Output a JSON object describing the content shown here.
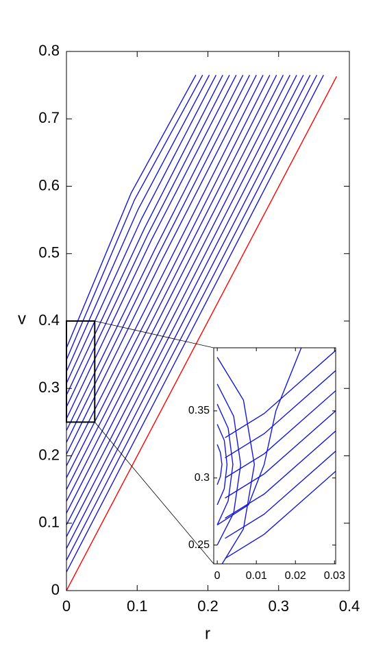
{
  "chart_data": [
    {
      "type": "line",
      "xlabel": "r",
      "ylabel": "v",
      "xlim": [
        0,
        0.4
      ],
      "ylim": [
        0,
        0.8
      ],
      "xticks": [
        0,
        0.1,
        0.2,
        0.3,
        0.4
      ],
      "yticks": [
        0,
        0.1,
        0.2,
        0.3,
        0.4,
        0.5,
        0.6,
        0.7,
        0.8
      ],
      "zoom_box": {
        "xlim": [
          0,
          0.04
        ],
        "ylim": [
          0.25,
          0.4
        ]
      },
      "series": [
        {
          "color": "#1515d6",
          "x": [
            0,
            0.0915,
            0.183
          ],
          "values": [
            0.36,
            0.59,
            0.765
          ]
        },
        {
          "color": "#1515d6",
          "x": [
            0,
            0.0963,
            0.1925
          ],
          "values": [
            0.3425,
            0.58,
            0.765
          ]
        },
        {
          "color": "#1515d6",
          "x": [
            0,
            0.101,
            0.202
          ],
          "values": [
            0.325,
            0.565,
            0.765
          ]
        },
        {
          "color": "#1515d6",
          "x": [
            0,
            0.1058,
            0.2115
          ],
          "values": [
            0.3075,
            0.551,
            0.765
          ]
        },
        {
          "color": "#1515d6",
          "x": [
            0,
            0.1105,
            0.221
          ],
          "values": [
            0.29,
            0.538,
            0.765
          ]
        },
        {
          "color": "#1515d6",
          "x": [
            0,
            0.1153,
            0.2305
          ],
          "values": [
            0.2725,
            0.529,
            0.765
          ]
        },
        {
          "color": "#1515d6",
          "x": [
            0,
            0.12,
            0.24
          ],
          "values": [
            0.255,
            0.52,
            0.765
          ]
        },
        {
          "color": "#1515d6",
          "x": [
            0,
            0.1248,
            0.2495
          ],
          "values": [
            0.2375,
            0.506,
            0.765
          ]
        },
        {
          "color": "#1515d6",
          "x": [
            0,
            0.1295,
            0.259
          ],
          "values": [
            0.22,
            0.498,
            0.765
          ]
        },
        {
          "color": "#1515d6",
          "x": [
            0,
            0.1343,
            0.2685
          ],
          "values": [
            0.2025,
            0.489,
            0.765
          ]
        },
        {
          "color": "#1515d6",
          "x": [
            0,
            0.139,
            0.278
          ],
          "values": [
            0.185,
            0.475,
            0.765
          ]
        },
        {
          "color": "#1515d6",
          "x": [
            0,
            0.1438,
            0.2875
          ],
          "values": [
            0.1675,
            0.466,
            0.765
          ]
        },
        {
          "color": "#1515d6",
          "x": [
            0,
            0.1485,
            0.297
          ],
          "values": [
            0.15,
            0.4575,
            0.765
          ]
        },
        {
          "color": "#1515d6",
          "x": [
            0,
            0.1533,
            0.3065
          ],
          "values": [
            0.1325,
            0.449,
            0.765
          ]
        },
        {
          "color": "#1515d6",
          "x": [
            0,
            0.158,
            0.316
          ],
          "values": [
            0.115,
            0.44,
            0.765
          ]
        },
        {
          "color": "#1515d6",
          "x": [
            0,
            0.1628,
            0.3255
          ],
          "values": [
            0.0975,
            0.431,
            0.765
          ]
        },
        {
          "color": "#1515d6",
          "x": [
            0,
            0.1675,
            0.335
          ],
          "values": [
            0.08,
            0.4225,
            0.765
          ]
        },
        {
          "color": "#1515d6",
          "x": [
            0,
            0.1723,
            0.3445
          ],
          "values": [
            0.0625,
            0.414,
            0.765
          ]
        },
        {
          "color": "#1515d6",
          "x": [
            0,
            0.177,
            0.354
          ],
          "values": [
            0.045,
            0.405,
            0.765
          ]
        },
        {
          "color": "#1515d6",
          "x": [
            0,
            0.1818,
            0.3635
          ],
          "values": [
            0.0275,
            0.396,
            0.765
          ]
        },
        {
          "color": "#ff0000",
          "x": [
            0,
            0.382
          ],
          "values": [
            0,
            0.763
          ]
        }
      ]
    },
    {
      "type": "line",
      "xlim": [
        -0.0009,
        0.0303
      ],
      "ylim": [
        0.236,
        0.397
      ],
      "xticks": [
        0,
        0.01,
        0.02,
        0.03
      ],
      "yticks": [
        0.25,
        0.3,
        0.35
      ],
      "series": [
        {
          "color": "#1515d6",
          "x": [
            0,
            0.0067,
            0.0095,
            0.0067,
            0
          ],
          "values": [
            0.39,
            0.358,
            0.31,
            0.262,
            0.23
          ]
        },
        {
          "color": "#1515d6",
          "x": [
            0,
            0.0042,
            0.006,
            0.0042,
            0
          ],
          "values": [
            0.37,
            0.346,
            0.31,
            0.274,
            0.25
          ]
        },
        {
          "color": "#1515d6",
          "x": [
            0,
            0.0028,
            0.004,
            0.0028,
            0
          ],
          "values": [
            0.355,
            0.337,
            0.31,
            0.283,
            0.265
          ]
        },
        {
          "color": "#1515d6",
          "x": [
            0,
            0.0018,
            0.0025,
            0.0018,
            0
          ],
          "values": [
            0.34,
            0.328,
            0.31,
            0.292,
            0.28
          ]
        },
        {
          "color": "#1515d6",
          "x": [
            0,
            0.0008,
            0.0012,
            0.0008,
            0
          ],
          "values": [
            0.325,
            0.319,
            0.31,
            0.301,
            0.295
          ]
        },
        {
          "color": "#1515d6",
          "x": [
            0.0215,
            0.015,
            0.012,
            0.008,
            0
          ],
          "values": [
            0.397,
            0.35,
            0.31,
            0.28,
            0.265
          ]
        },
        {
          "color": "#1515d6",
          "x": [
            0.002,
            0.012,
            0.0303
          ],
          "values": [
            0.33,
            0.348,
            0.395
          ]
        },
        {
          "color": "#1515d6",
          "x": [
            0.002,
            0.012,
            0.0303
          ],
          "values": [
            0.315,
            0.333,
            0.38
          ]
        },
        {
          "color": "#1515d6",
          "x": [
            0.002,
            0.012,
            0.0303
          ],
          "values": [
            0.3,
            0.318,
            0.365
          ]
        },
        {
          "color": "#1515d6",
          "x": [
            0.002,
            0.012,
            0.0303
          ],
          "values": [
            0.285,
            0.303,
            0.35
          ]
        },
        {
          "color": "#1515d6",
          "x": [
            0.002,
            0.012,
            0.0303
          ],
          "values": [
            0.27,
            0.288,
            0.335
          ]
        },
        {
          "color": "#1515d6",
          "x": [
            0.002,
            0.012,
            0.0303
          ],
          "values": [
            0.255,
            0.273,
            0.32
          ]
        },
        {
          "color": "#1515d6",
          "x": [
            0.002,
            0.012,
            0.0303
          ],
          "values": [
            0.24,
            0.258,
            0.305
          ]
        }
      ]
    }
  ]
}
